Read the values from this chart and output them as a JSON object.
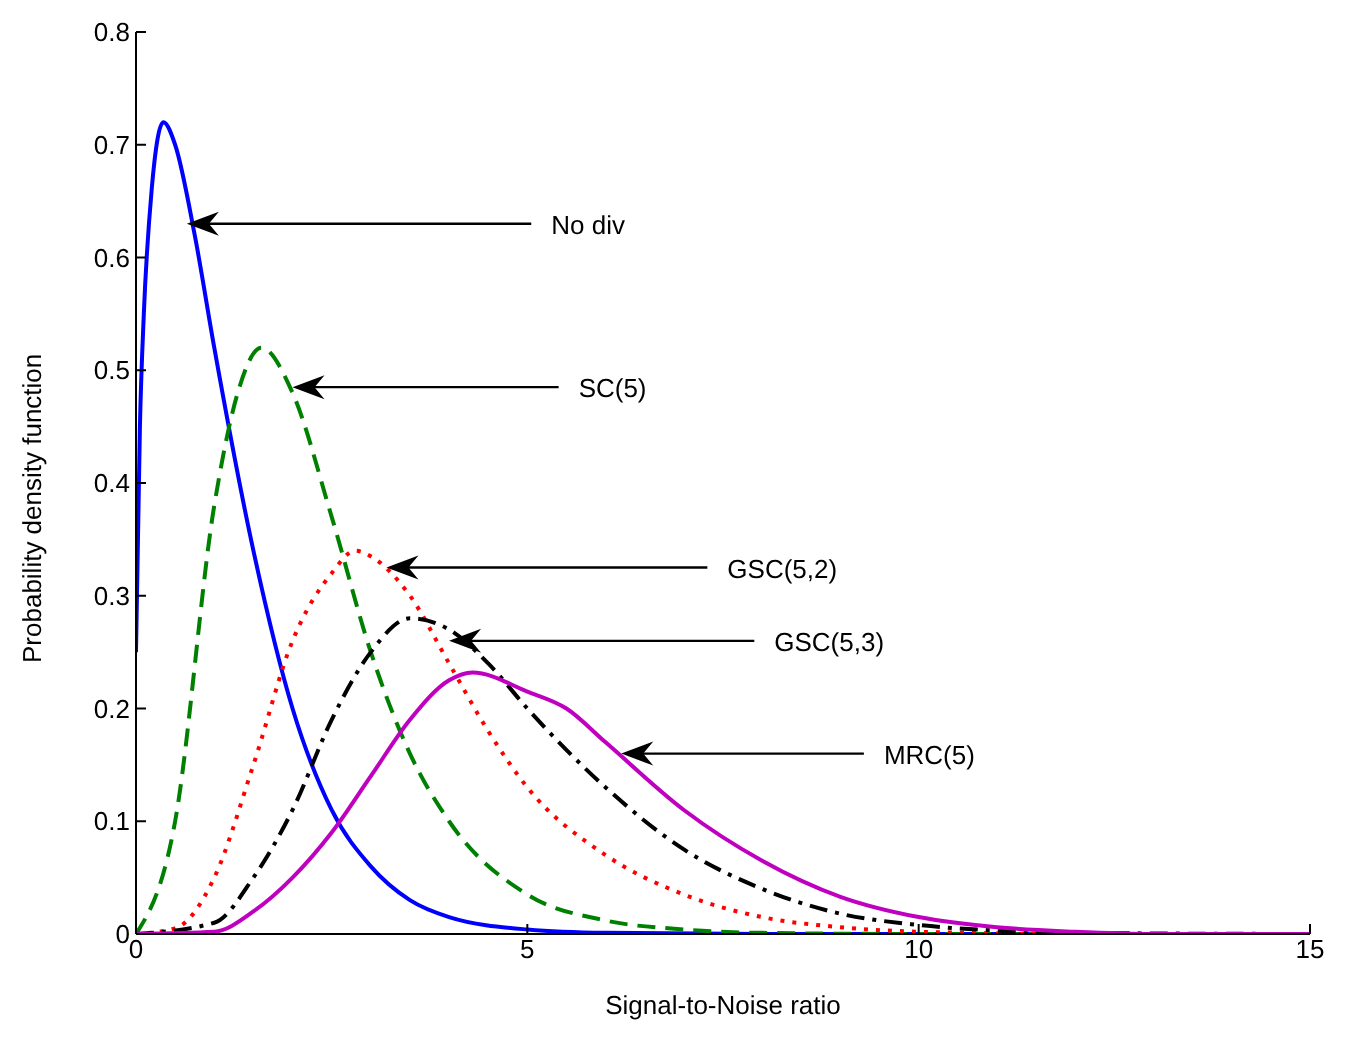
{
  "chart_data": {
    "type": "line",
    "xlabel": "Signal-to-Noise ratio",
    "ylabel": "Probability density function",
    "xlim": [
      0,
      15
    ],
    "xticks": [
      0,
      5,
      10,
      15
    ],
    "ylim": [
      0,
      0.8
    ],
    "yticks": [
      0,
      0.1,
      0.2,
      0.3,
      0.4,
      0.5,
      0.6,
      0.7,
      0.8
    ],
    "grid": false,
    "legend": false,
    "marker": "none",
    "series": [
      {
        "color": "#0000ff",
        "line_style": "solid",
        "x": [
          0,
          0.05,
          0.1,
          0.2,
          0.35,
          0.5,
          0.75,
          1,
          1.5,
          2,
          2.5,
          3,
          3.5,
          4,
          5,
          6,
          8,
          15
        ],
        "values": [
          0.25,
          0.45,
          0.55,
          0.66,
          0.72,
          0.7,
          0.62,
          0.52,
          0.34,
          0.2,
          0.11,
          0.06,
          0.03,
          0.015,
          0.004,
          0.001,
          0,
          0
        ]
      },
      {
        "color": "#008000",
        "line_style": "dashed",
        "x": [
          0,
          0.5,
          1,
          1.3,
          1.6,
          2,
          2.5,
          3,
          3.5,
          4,
          5,
          6,
          7,
          8,
          10,
          15
        ],
        "values": [
          0,
          0.1,
          0.38,
          0.48,
          0.52,
          0.48,
          0.37,
          0.25,
          0.16,
          0.1,
          0.035,
          0.012,
          0.004,
          0.001,
          0,
          0
        ]
      },
      {
        "color": "#ff0000",
        "line_style": "dotted",
        "x": [
          0,
          0.5,
          1,
          1.5,
          2,
          2.5,
          2.8,
          3,
          3.5,
          4,
          4.5,
          5,
          6,
          7,
          8,
          9,
          10,
          12,
          15
        ],
        "values": [
          0,
          0.005,
          0.05,
          0.15,
          0.26,
          0.32,
          0.34,
          0.335,
          0.3,
          0.24,
          0.18,
          0.13,
          0.07,
          0.035,
          0.015,
          0.006,
          0.002,
          0,
          0
        ]
      },
      {
        "color": "#000000",
        "line_style": "dashdot",
        "x": [
          0,
          1,
          1.5,
          2,
          2.5,
          3,
          3.5,
          4,
          4.5,
          5,
          6,
          7,
          8,
          9,
          10,
          11,
          12,
          15
        ],
        "values": [
          0,
          0.01,
          0.05,
          0.11,
          0.19,
          0.25,
          0.28,
          0.27,
          0.24,
          0.2,
          0.13,
          0.075,
          0.04,
          0.018,
          0.008,
          0.003,
          0.001,
          0
        ]
      },
      {
        "color": "#bf00bf",
        "line_style": "solid",
        "x": [
          0,
          1,
          1.5,
          2,
          2.5,
          3,
          3.5,
          4,
          4.3,
          5,
          5.5,
          6,
          7,
          8,
          9,
          10,
          11,
          12,
          13,
          15
        ],
        "values": [
          0,
          0.002,
          0.02,
          0.05,
          0.09,
          0.14,
          0.19,
          0.225,
          0.232,
          0.215,
          0.2,
          0.17,
          0.11,
          0.065,
          0.033,
          0.015,
          0.006,
          0.002,
          0,
          0
        ]
      }
    ],
    "annotations": [
      {
        "text": "No div",
        "x": 0.65,
        "y": 0.63
      },
      {
        "text": "SC(5)",
        "x": 2,
        "y": 0.485
      },
      {
        "text": "GSC(5,2)",
        "x": 3.2,
        "y": 0.325
      },
      {
        "text": "GSC(5,3)",
        "x": 4,
        "y": 0.26
      },
      {
        "text": "MRC(5)",
        "x": 6.2,
        "y": 0.16
      }
    ]
  }
}
